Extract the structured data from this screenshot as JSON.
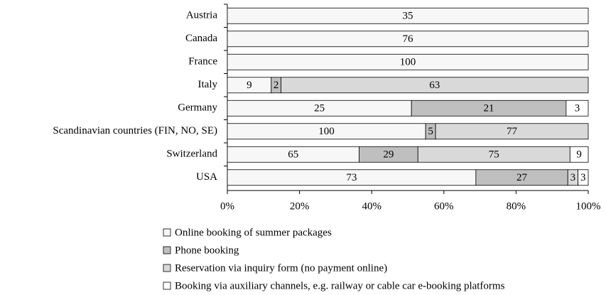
{
  "chart_data": {
    "type": "bar",
    "orientation": "horizontal",
    "stack": "percent",
    "categories": [
      "Austria",
      "Canada",
      "France",
      "Italy",
      "Germany",
      "Scandinavian countries (FIN, NO, SE)",
      "Switzerland",
      "USA"
    ],
    "series": [
      {
        "name": "Online booking of summer packages",
        "color": "#f7f7f7",
        "values": [
          35,
          76,
          100,
          9,
          25,
          100,
          65,
          73
        ]
      },
      {
        "name": "Phone booking",
        "color": "#bfbfbf",
        "values": [
          null,
          null,
          null,
          2,
          21,
          5,
          29,
          27
        ]
      },
      {
        "name": "Reservation via inquiry form (no payment online)",
        "color": "#d9d9d9",
        "values": [
          null,
          null,
          null,
          63,
          null,
          77,
          75,
          3
        ]
      },
      {
        "name": "Booking via auxiliary channels, e.g.  railway or cable car e-booking platforms",
        "color": "#ffffff",
        "values": [
          null,
          null,
          null,
          null,
          3,
          null,
          9,
          3
        ]
      }
    ],
    "xlim": [
      0,
      100
    ],
    "xticks": [
      {
        "value": 0,
        "label": "0%"
      },
      {
        "value": 20,
        "label": "20%"
      },
      {
        "value": 40,
        "label": "40%"
      },
      {
        "value": 60,
        "label": "60%"
      },
      {
        "value": 80,
        "label": "80%"
      },
      {
        "value": 100,
        "label": "100%"
      }
    ],
    "legend": "bottom"
  }
}
